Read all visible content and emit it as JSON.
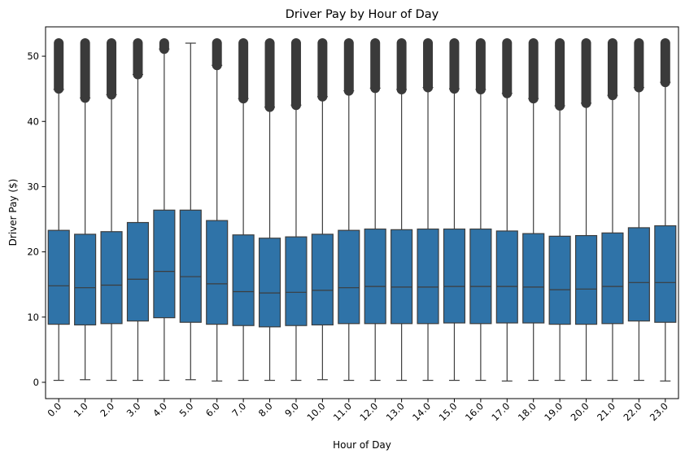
{
  "chart_data": {
    "type": "box",
    "title": "Driver Pay by Hour of Day",
    "xlabel": "Hour of Day",
    "ylabel": "Driver Pay ($)",
    "ylim": [
      -2.5,
      54.5
    ],
    "yticks": [
      0,
      10,
      20,
      30,
      40,
      50
    ],
    "ytick_labels": [
      "0",
      "10",
      "20",
      "30",
      "40",
      "50"
    ],
    "box_color": "#2f73a8",
    "line_color": "#3d3d3d",
    "categories": [
      "0.0",
      "1.0",
      "2.0",
      "3.0",
      "4.0",
      "5.0",
      "6.0",
      "7.0",
      "8.0",
      "9.0",
      "10.0",
      "11.0",
      "12.0",
      "13.0",
      "14.0",
      "15.0",
      "16.0",
      "17.0",
      "18.0",
      "19.0",
      "20.0",
      "21.0",
      "22.0",
      "23.0"
    ],
    "boxes": [
      {
        "whislo": 0.3,
        "q1": 8.9,
        "med": 14.8,
        "q3": 23.3,
        "whishi": 44.9,
        "fliers": [
          45.0,
          52.0
        ]
      },
      {
        "whislo": 0.4,
        "q1": 8.8,
        "med": 14.5,
        "q3": 22.7,
        "whishi": 43.6,
        "fliers": [
          43.6,
          52.0
        ]
      },
      {
        "whislo": 0.3,
        "q1": 9.0,
        "med": 14.9,
        "q3": 23.1,
        "whishi": 44.1,
        "fliers": [
          44.1,
          52.0
        ]
      },
      {
        "whislo": 0.3,
        "q1": 9.4,
        "med": 15.8,
        "q3": 24.5,
        "whishi": 47.2,
        "fliers": [
          47.2,
          52.0
        ]
      },
      {
        "whislo": 0.3,
        "q1": 9.9,
        "med": 17.0,
        "q3": 26.4,
        "whishi": 51.1,
        "fliers": [
          51.1,
          52.0
        ]
      },
      {
        "whislo": 0.4,
        "q1": 9.2,
        "med": 16.2,
        "q3": 26.4,
        "whishi": 52.0,
        "fliers": []
      },
      {
        "whislo": 0.2,
        "q1": 8.9,
        "med": 15.1,
        "q3": 24.8,
        "whishi": 48.6,
        "fliers": [
          48.6,
          52.0
        ]
      },
      {
        "whislo": 0.3,
        "q1": 8.7,
        "med": 13.9,
        "q3": 22.6,
        "whishi": 43.5,
        "fliers": [
          43.5,
          52.0
        ]
      },
      {
        "whislo": 0.3,
        "q1": 8.5,
        "med": 13.7,
        "q3": 22.1,
        "whishi": 42.2,
        "fliers": [
          42.2,
          52.0
        ]
      },
      {
        "whislo": 0.3,
        "q1": 8.7,
        "med": 13.8,
        "q3": 22.3,
        "whishi": 42.5,
        "fliers": [
          42.5,
          52.0
        ]
      },
      {
        "whislo": 0.4,
        "q1": 8.8,
        "med": 14.1,
        "q3": 22.7,
        "whishi": 43.8,
        "fliers": [
          43.8,
          52.0
        ]
      },
      {
        "whislo": 0.3,
        "q1": 9.0,
        "med": 14.5,
        "q3": 23.3,
        "whishi": 44.7,
        "fliers": [
          44.7,
          52.0
        ]
      },
      {
        "whislo": 0.3,
        "q1": 9.0,
        "med": 14.7,
        "q3": 23.5,
        "whishi": 45.1,
        "fliers": [
          45.1,
          52.0
        ]
      },
      {
        "whislo": 0.3,
        "q1": 9.0,
        "med": 14.6,
        "q3": 23.4,
        "whishi": 44.9,
        "fliers": [
          44.9,
          52.0
        ]
      },
      {
        "whislo": 0.3,
        "q1": 9.0,
        "med": 14.6,
        "q3": 23.5,
        "whishi": 45.2,
        "fliers": [
          45.2,
          52.0
        ]
      },
      {
        "whislo": 0.3,
        "q1": 9.1,
        "med": 14.7,
        "q3": 23.5,
        "whishi": 45.0,
        "fliers": [
          45.0,
          52.0
        ]
      },
      {
        "whislo": 0.3,
        "q1": 9.0,
        "med": 14.7,
        "q3": 23.5,
        "whishi": 44.9,
        "fliers": [
          44.9,
          52.0
        ]
      },
      {
        "whislo": 0.2,
        "q1": 9.1,
        "med": 14.7,
        "q3": 23.2,
        "whishi": 44.3,
        "fliers": [
          44.3,
          52.0
        ]
      },
      {
        "whislo": 0.3,
        "q1": 9.1,
        "med": 14.6,
        "q3": 22.8,
        "whishi": 43.5,
        "fliers": [
          43.5,
          52.0
        ]
      },
      {
        "whislo": 0.3,
        "q1": 8.9,
        "med": 14.2,
        "q3": 22.4,
        "whishi": 42.4,
        "fliers": [
          42.4,
          52.0
        ]
      },
      {
        "whislo": 0.3,
        "q1": 8.9,
        "med": 14.3,
        "q3": 22.5,
        "whishi": 42.8,
        "fliers": [
          42.8,
          52.0
        ]
      },
      {
        "whislo": 0.3,
        "q1": 9.0,
        "med": 14.7,
        "q3": 22.9,
        "whishi": 44.0,
        "fliers": [
          44.0,
          52.0
        ]
      },
      {
        "whislo": 0.3,
        "q1": 9.4,
        "med": 15.3,
        "q3": 23.7,
        "whishi": 45.2,
        "fliers": [
          45.2,
          52.0
        ]
      },
      {
        "whislo": 0.2,
        "q1": 9.2,
        "med": 15.3,
        "q3": 24.0,
        "whishi": 46.0,
        "fliers": [
          46.0,
          52.0
        ]
      }
    ]
  }
}
